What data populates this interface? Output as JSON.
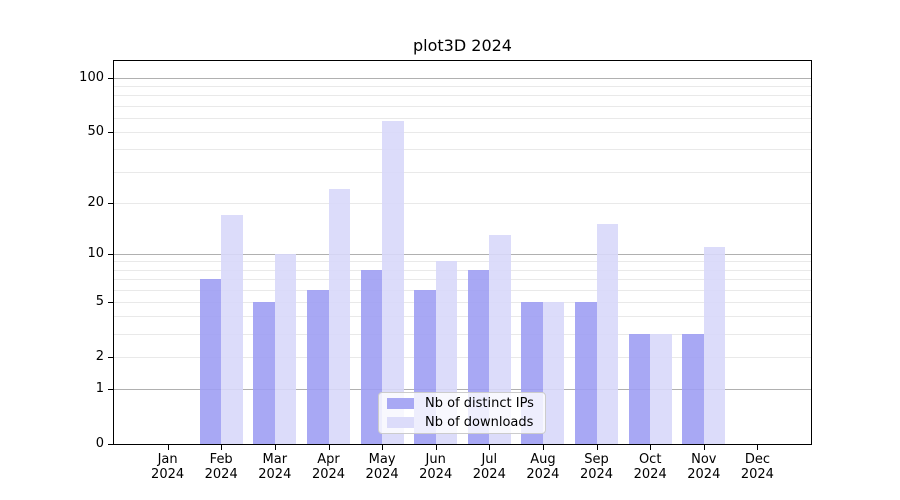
{
  "chart_data": {
    "type": "bar",
    "title": "plot3D 2024",
    "categories": [
      "Jan 2024",
      "Feb 2024",
      "Mar 2024",
      "Apr 2024",
      "May 2024",
      "Jun 2024",
      "Jul 2024",
      "Aug 2024",
      "Sep 2024",
      "Oct 2024",
      "Nov 2024",
      "Dec 2024"
    ],
    "series": [
      {
        "name": "Nb of distinct IPs",
        "color": "#a8a8f4",
        "fill_rgba": "rgba(158,158,243,0.9)",
        "values": [
          0,
          7,
          5,
          6,
          8,
          6,
          8,
          5,
          5,
          3,
          3,
          0
        ]
      },
      {
        "name": "Nb of downloads",
        "color": "#dcdcfa",
        "fill_rgba": "rgba(216,216,250,0.9)",
        "values": [
          0,
          17,
          10,
          24,
          58,
          9,
          13,
          5,
          15,
          3,
          11,
          0
        ]
      }
    ],
    "yscale": "log1p",
    "ylim": [
      0,
      124
    ],
    "yticks_labeled": [
      0,
      1,
      2,
      5,
      10,
      20,
      50,
      100
    ],
    "gridlines_major": [
      1,
      10,
      100
    ],
    "gridlines_minor": [
      2,
      3,
      4,
      5,
      6,
      7,
      8,
      9,
      20,
      30,
      40,
      50,
      60,
      70,
      80,
      90
    ],
    "grid": true,
    "legend_position": "lower center",
    "xlabel": "",
    "ylabel": "",
    "colors": {
      "major_grid": "#b0b0b0",
      "minor_grid": "#e9e9e9",
      "axis": "#000000",
      "background": "#ffffff",
      "text": "#000000"
    }
  }
}
